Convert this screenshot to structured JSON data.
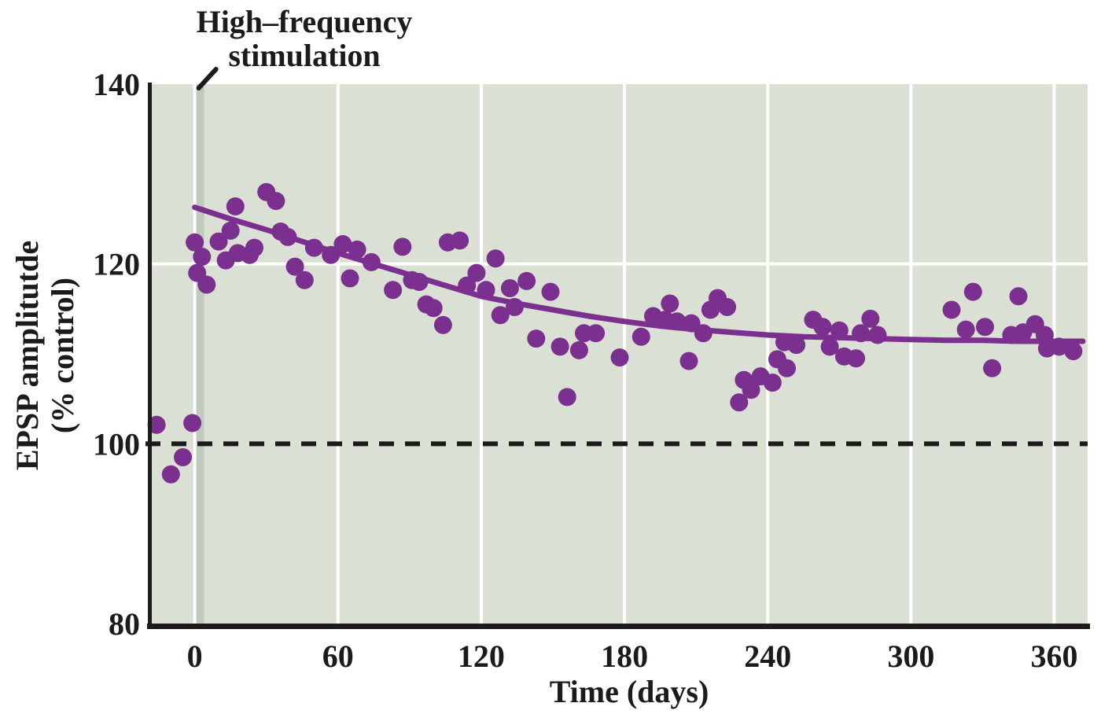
{
  "figure": {
    "annotation": {
      "line1": "High–frequency",
      "line2": "stimulation"
    },
    "y_axis": {
      "title_line1": "EPSP amplitutde",
      "title_line2": "(% control)"
    },
    "x_axis": {
      "title": "Time (days)"
    }
  },
  "colors": {
    "plot_background": "#dbe0d4",
    "stimulation_band": "#c0cabd",
    "gridline": "#ffffff",
    "data_purple": "#7b2f8f",
    "ink": "#1c1a1b"
  },
  "chart_data": {
    "type": "scatter",
    "title": "High–frequency stimulation (annotated at day 0)",
    "xlabel": "Time (days)",
    "ylabel": "EPSP amplitutde (% control)",
    "xlim": [
      -18,
      374
    ],
    "ylim": [
      80,
      140
    ],
    "x_ticks": [
      0,
      60,
      120,
      180,
      240,
      300,
      360
    ],
    "y_ticks": [
      80,
      100,
      120,
      140
    ],
    "grid_y_values": [
      120
    ],
    "baseline_value": 100,
    "stimulation_day": 0,
    "legend": "none",
    "series": [
      {
        "name": "EPSP amplitude measurements",
        "kind": "scatter",
        "points": [
          [
            -16,
            102.1
          ],
          [
            -10,
            96.6
          ],
          [
            -5,
            98.5
          ],
          [
            -1,
            102.3
          ],
          [
            0,
            122.4
          ],
          [
            1,
            119.0
          ],
          [
            3,
            120.8
          ],
          [
            5,
            117.7
          ],
          [
            10,
            122.5
          ],
          [
            13,
            120.4
          ],
          [
            15,
            123.7
          ],
          [
            17,
            126.4
          ],
          [
            18,
            121.2
          ],
          [
            23,
            121.0
          ],
          [
            25,
            121.8
          ],
          [
            30,
            128.0
          ],
          [
            34,
            127.0
          ],
          [
            36,
            123.6
          ],
          [
            39,
            123.0
          ],
          [
            42,
            119.7
          ],
          [
            46,
            118.2
          ],
          [
            50,
            121.8
          ],
          [
            57,
            121.0
          ],
          [
            62,
            122.2
          ],
          [
            65,
            118.4
          ],
          [
            68,
            121.6
          ],
          [
            74,
            120.2
          ],
          [
            83,
            117.1
          ],
          [
            87,
            121.9
          ],
          [
            91,
            118.2
          ],
          [
            94,
            118.0
          ],
          [
            97,
            115.5
          ],
          [
            100,
            115.1
          ],
          [
            104,
            113.2
          ],
          [
            106,
            122.4
          ],
          [
            111,
            122.6
          ],
          [
            114,
            117.6
          ],
          [
            118,
            119.0
          ],
          [
            122,
            117.1
          ],
          [
            126,
            120.6
          ],
          [
            128,
            114.3
          ],
          [
            132,
            117.3
          ],
          [
            134,
            115.2
          ],
          [
            139,
            118.1
          ],
          [
            143,
            111.7
          ],
          [
            149,
            116.9
          ],
          [
            153,
            110.8
          ],
          [
            156,
            105.2
          ],
          [
            161,
            110.4
          ],
          [
            163,
            112.3
          ],
          [
            168,
            112.3
          ],
          [
            178,
            109.6
          ],
          [
            187,
            111.9
          ],
          [
            192,
            114.2
          ],
          [
            197,
            113.8
          ],
          [
            199,
            115.6
          ],
          [
            202,
            113.6
          ],
          [
            207,
            109.2
          ],
          [
            208,
            113.4
          ],
          [
            213,
            112.3
          ],
          [
            216,
            114.9
          ],
          [
            219,
            116.2
          ],
          [
            223,
            115.2
          ],
          [
            228,
            104.6
          ],
          [
            230,
            107.1
          ],
          [
            233,
            106.0
          ],
          [
            237,
            107.5
          ],
          [
            242,
            106.8
          ],
          [
            244,
            109.4
          ],
          [
            247,
            111.3
          ],
          [
            248,
            108.4
          ],
          [
            252,
            111.0
          ],
          [
            259,
            113.8
          ],
          [
            263,
            113.0
          ],
          [
            266,
            110.8
          ],
          [
            270,
            112.6
          ],
          [
            272,
            109.7
          ],
          [
            277,
            109.5
          ],
          [
            279,
            112.3
          ],
          [
            283,
            113.9
          ],
          [
            286,
            112.1
          ],
          [
            317,
            114.9
          ],
          [
            323,
            112.7
          ],
          [
            326,
            116.9
          ],
          [
            331,
            113.0
          ],
          [
            334,
            108.4
          ],
          [
            342,
            112.1
          ],
          [
            345,
            116.4
          ],
          [
            347,
            112.4
          ],
          [
            352,
            113.3
          ],
          [
            356,
            112.1
          ],
          [
            357,
            110.6
          ],
          [
            362,
            110.8
          ],
          [
            368,
            110.3
          ]
        ]
      },
      {
        "name": "Decay trend fit",
        "kind": "line",
        "points": [
          [
            0,
            126.3
          ],
          [
            15,
            125.0
          ],
          [
            30,
            123.8
          ],
          [
            45,
            122.5
          ],
          [
            60,
            121.2
          ],
          [
            75,
            120.0
          ],
          [
            90,
            118.8
          ],
          [
            105,
            117.6
          ],
          [
            120,
            116.4
          ],
          [
            135,
            115.6
          ],
          [
            150,
            114.9
          ],
          [
            165,
            114.2
          ],
          [
            180,
            113.6
          ],
          [
            195,
            113.1
          ],
          [
            210,
            112.7
          ],
          [
            225,
            112.4
          ],
          [
            240,
            112.1
          ],
          [
            255,
            111.9
          ],
          [
            270,
            111.8
          ],
          [
            285,
            111.7
          ],
          [
            300,
            111.6
          ],
          [
            315,
            111.5
          ],
          [
            330,
            111.5
          ],
          [
            345,
            111.4
          ],
          [
            360,
            111.4
          ],
          [
            372,
            111.4
          ]
        ]
      }
    ]
  }
}
